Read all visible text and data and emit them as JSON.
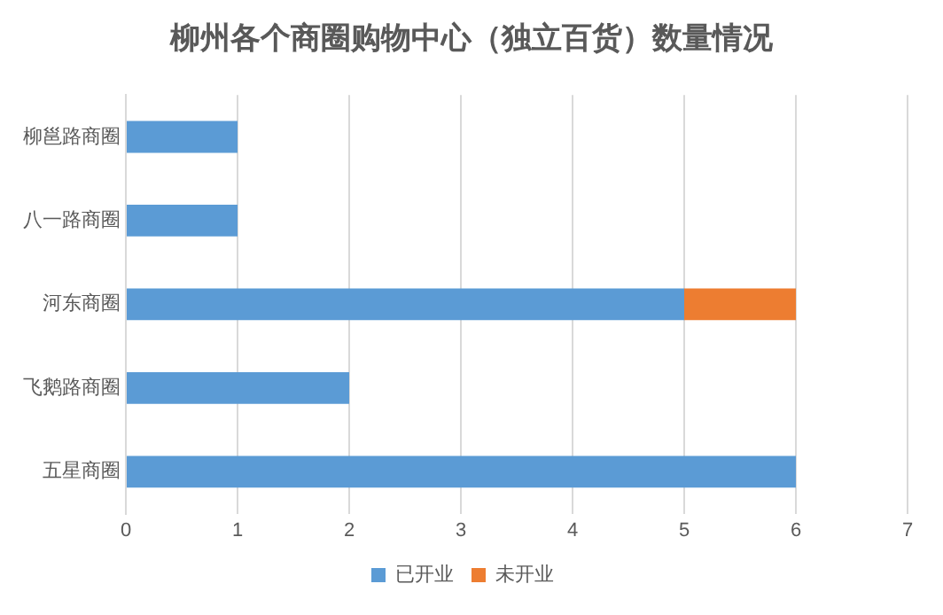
{
  "chart_data": {
    "type": "bar",
    "title": "柳州各个商圈购物中心（独立百货）数量情况",
    "orientation": "horizontal",
    "stacked": true,
    "categories": [
      "柳邕路商圈",
      "八一路商圈",
      "河东商圈",
      "飞鹅路商圈",
      "五星商圈"
    ],
    "series": [
      {
        "name": "已开业",
        "color": "#5b9bd5",
        "values": [
          1,
          1,
          5,
          2,
          6
        ]
      },
      {
        "name": "未开业",
        "color": "#ed7d31",
        "values": [
          0,
          0,
          1,
          0,
          0
        ]
      }
    ],
    "xlim": [
      0,
      7
    ],
    "xticks": [
      0,
      1,
      2,
      3,
      4,
      5,
      6,
      7
    ],
    "grid": "x",
    "legend": "bottom"
  }
}
